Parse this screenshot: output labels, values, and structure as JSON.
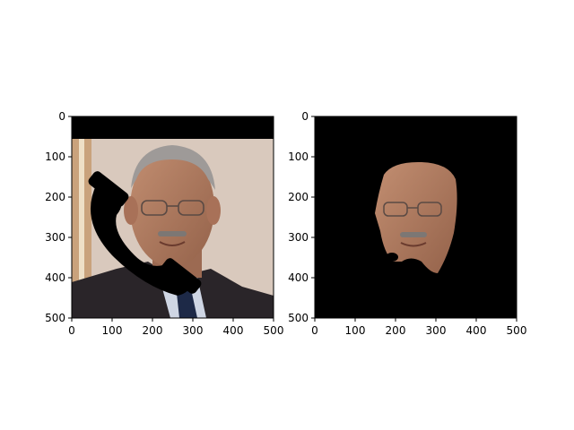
{
  "chart_data": [
    {
      "type": "image",
      "title": "",
      "xlabel": "",
      "ylabel": "",
      "xlim": [
        0,
        500
      ],
      "ylim": [
        500,
        0
      ],
      "xticks": [
        0,
        100,
        200,
        300,
        400,
        500
      ],
      "yticks": [
        0,
        100,
        200,
        300,
        400,
        500
      ],
      "image": {
        "description_free": true,
        "occlusions": [
          {
            "kind": "top-bar",
            "x": [
              0,
              500
            ],
            "y": [
              0,
              55
            ]
          },
          {
            "kind": "handset-mask"
          }
        ]
      }
    },
    {
      "type": "image",
      "title": "",
      "xlabel": "",
      "ylabel": "",
      "xlim": [
        0,
        500
      ],
      "ylim": [
        500,
        0
      ],
      "xticks": [
        0,
        100,
        200,
        300,
        400,
        500
      ],
      "yticks": [
        0,
        100,
        200,
        300,
        400,
        500
      ],
      "image": {
        "background": "#000000"
      }
    }
  ],
  "colors": {
    "wall": "#d9c9bd",
    "skin": "#b07d62",
    "suit": "#2a2529",
    "shirt": "#cfd6e4",
    "hair": "#9e9a98",
    "mask": "#000000"
  }
}
